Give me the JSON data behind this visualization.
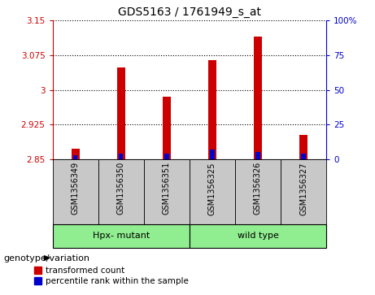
{
  "title": "GDS5163 / 1761949_s_at",
  "samples": [
    "GSM1356349",
    "GSM1356350",
    "GSM1356351",
    "GSM1356325",
    "GSM1356326",
    "GSM1356327"
  ],
  "transformed_counts": [
    2.873,
    3.048,
    2.985,
    3.065,
    3.115,
    2.902
  ],
  "percentile_ranks": [
    3,
    4,
    4,
    7,
    5,
    4
  ],
  "ymin": 2.85,
  "ymax": 3.15,
  "yticks": [
    2.85,
    2.925,
    3.0,
    3.075,
    3.15
  ],
  "ytick_labels": [
    "2.85",
    "2.925",
    "3",
    "3.075",
    "3.15"
  ],
  "right_yticks": [
    0,
    25,
    50,
    75,
    100
  ],
  "right_ytick_labels": [
    "0",
    "25",
    "50",
    "75",
    "100%"
  ],
  "bar_color": "#CC0000",
  "percentile_color": "#0000CC",
  "left_axis_color": "#CC0000",
  "right_axis_color": "#0000CC",
  "sample_bg_color": "#C8C8C8",
  "group_bg_color": "#90EE90",
  "genotype_label": "genotype/variation",
  "legend_items": [
    "transformed count",
    "percentile rank within the sample"
  ],
  "group1_label": "Hpx- mutant",
  "group2_label": "wild type",
  "group1_indices": [
    0,
    1,
    2
  ],
  "group2_indices": [
    3,
    4,
    5
  ]
}
